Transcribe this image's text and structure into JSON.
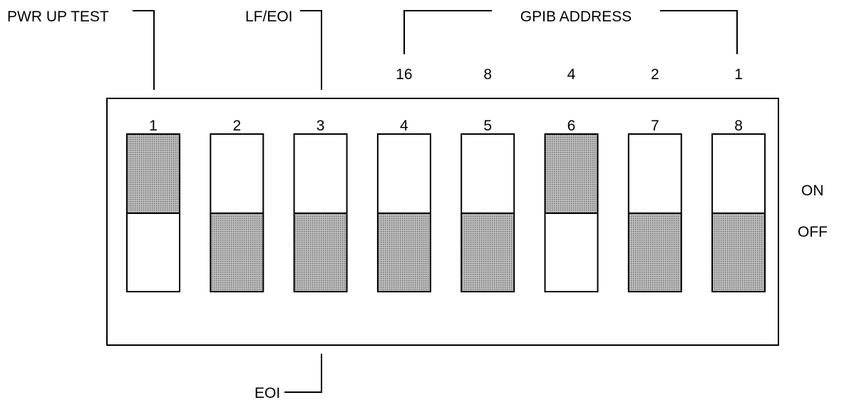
{
  "labels": {
    "pwr_up_test": "PWR UP TEST",
    "lf_eoi": "LF/EOI",
    "gpib_address": "GPIB ADDRESS",
    "eoi": "EOI",
    "on": "ON",
    "off": "OFF"
  },
  "address_weights": [
    "16",
    "8",
    "4",
    "2",
    "1"
  ],
  "switches": [
    {
      "number": "1",
      "state": "on"
    },
    {
      "number": "2",
      "state": "off"
    },
    {
      "number": "3",
      "state": "off"
    },
    {
      "number": "4",
      "state": "off"
    },
    {
      "number": "5",
      "state": "off"
    },
    {
      "number": "6",
      "state": "on"
    },
    {
      "number": "7",
      "state": "off"
    },
    {
      "number": "8",
      "state": "off"
    }
  ],
  "colors": {
    "line": "#000000",
    "background": "#ffffff",
    "shade_fill": "#bdbdbd",
    "shade_dot": "#6e6e6e"
  }
}
